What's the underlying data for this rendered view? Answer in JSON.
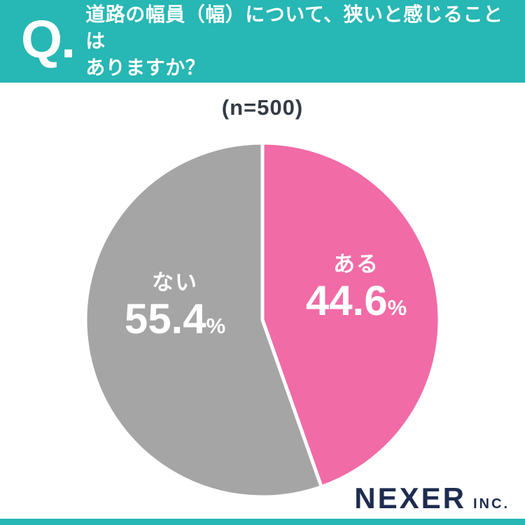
{
  "header": {
    "q_label": "Q.",
    "title_line1": "道路の幅員（幅）について、狭いと感じることは",
    "title_line2": "ありますか？"
  },
  "chart_data": {
    "type": "pie",
    "sample_label": "(n=500)",
    "sample_size": 500,
    "start_angle": "top",
    "direction": "clockwise",
    "legend_position": "inside",
    "slices": [
      {
        "label": "ある",
        "value": 44.6,
        "display": "44.6",
        "unit": "%",
        "color": "#f16ba6"
      },
      {
        "label": "ない",
        "value": 55.4,
        "display": "55.4",
        "unit": "%",
        "color": "#a5a5a5"
      }
    ]
  },
  "brand": {
    "name": "NEXER",
    "suffix": "INC."
  },
  "colors": {
    "accent_teal": "#27b7b4",
    "pink": "#f16ba6",
    "gray": "#a5a5a5",
    "navy": "#1f2c50",
    "label_text": "#ffffff",
    "n_label_text": "#333b43"
  }
}
